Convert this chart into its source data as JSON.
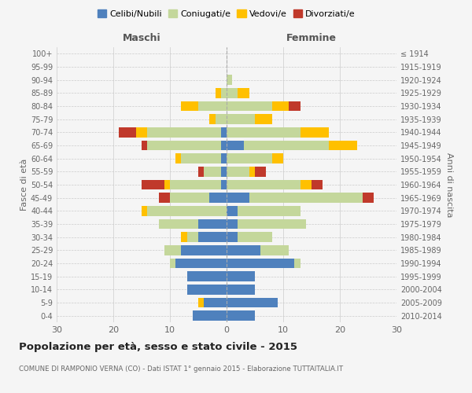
{
  "age_groups": [
    "0-4",
    "5-9",
    "10-14",
    "15-19",
    "20-24",
    "25-29",
    "30-34",
    "35-39",
    "40-44",
    "45-49",
    "50-54",
    "55-59",
    "60-64",
    "65-69",
    "70-74",
    "75-79",
    "80-84",
    "85-89",
    "90-94",
    "95-99",
    "100+"
  ],
  "birth_years": [
    "2010-2014",
    "2005-2009",
    "2000-2004",
    "1995-1999",
    "1990-1994",
    "1985-1989",
    "1980-1984",
    "1975-1979",
    "1970-1974",
    "1965-1969",
    "1960-1964",
    "1955-1959",
    "1950-1954",
    "1945-1949",
    "1940-1944",
    "1935-1939",
    "1930-1934",
    "1925-1929",
    "1920-1924",
    "1915-1919",
    "≤ 1914"
  ],
  "male": {
    "celibi": [
      6,
      4,
      7,
      7,
      9,
      8,
      5,
      5,
      0,
      3,
      1,
      1,
      1,
      1,
      1,
      0,
      0,
      0,
      0,
      0,
      0
    ],
    "coniugati": [
      0,
      0,
      0,
      0,
      1,
      3,
      2,
      7,
      14,
      7,
      9,
      3,
      7,
      13,
      13,
      2,
      5,
      1,
      0,
      0,
      0
    ],
    "vedovi": [
      0,
      1,
      0,
      0,
      0,
      0,
      1,
      0,
      1,
      0,
      1,
      0,
      1,
      0,
      2,
      1,
      3,
      1,
      0,
      0,
      0
    ],
    "divorziati": [
      0,
      0,
      0,
      0,
      0,
      0,
      0,
      0,
      0,
      2,
      4,
      1,
      0,
      1,
      3,
      0,
      0,
      0,
      0,
      0,
      0
    ]
  },
  "female": {
    "nubili": [
      5,
      9,
      5,
      5,
      12,
      6,
      2,
      2,
      2,
      4,
      0,
      0,
      0,
      3,
      0,
      0,
      0,
      0,
      0,
      0,
      0
    ],
    "coniugate": [
      0,
      0,
      0,
      0,
      1,
      5,
      6,
      12,
      11,
      20,
      13,
      4,
      8,
      15,
      13,
      5,
      8,
      2,
      1,
      0,
      0
    ],
    "vedove": [
      0,
      0,
      0,
      0,
      0,
      0,
      0,
      0,
      0,
      0,
      2,
      1,
      2,
      5,
      5,
      3,
      3,
      2,
      0,
      0,
      0
    ],
    "divorziate": [
      0,
      0,
      0,
      0,
      0,
      0,
      0,
      0,
      0,
      2,
      2,
      2,
      0,
      0,
      0,
      0,
      2,
      0,
      0,
      0,
      0
    ]
  },
  "colors": {
    "celibi_nubili": "#4f81bd",
    "coniugati_e": "#c4d79b",
    "vedovi_e": "#ffc000",
    "divorziati_e": "#c0392b"
  },
  "title": "Popolazione per età, sesso e stato civile - 2015",
  "subtitle": "COMUNE DI RAMPONIO VERNA (CO) - Dati ISTAT 1° gennaio 2015 - Elaborazione TUTTAITALIA.IT",
  "ylabel_left": "Fasce di età",
  "ylabel_right": "Anni di nascita",
  "xlabel_left": "Maschi",
  "xlabel_right": "Femmine",
  "xlim": 30,
  "background_color": "#f5f5f5",
  "grid_color": "#cccccc"
}
